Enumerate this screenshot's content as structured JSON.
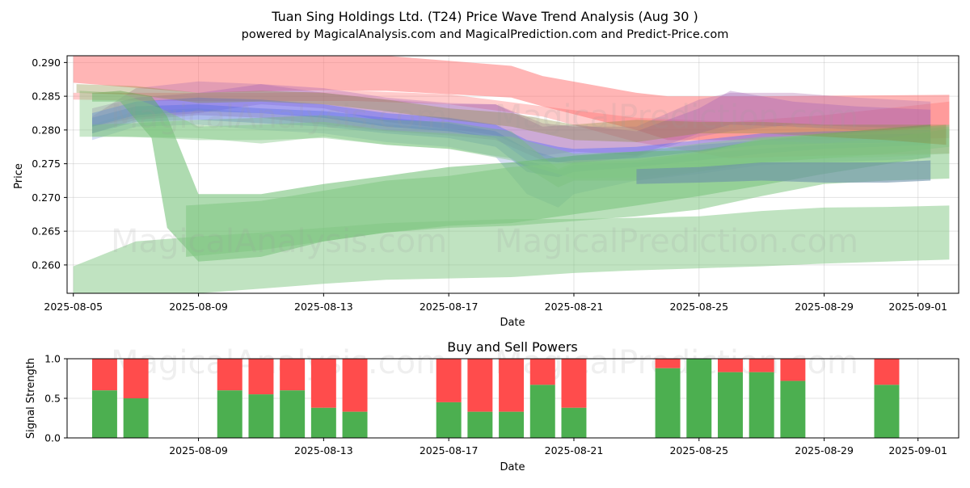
{
  "chart_data": [
    {
      "type": "area",
      "title": "Tuan Sing Holdings Ltd. (T24) Price Wave Trend Analysis (Aug 30 )",
      "subtitle": "powered by MagicalAnalysis.com and MagicalPrediction.com and Predict-Price.com",
      "xlabel": "Date",
      "ylabel": "Price",
      "x_start": "2025-08-05",
      "x_range_days": [
        -0.2,
        28.3
      ],
      "ylim": [
        0.2558,
        0.291
      ],
      "x_ticks": [
        "2025-08-05",
        "2025-08-09",
        "2025-08-13",
        "2025-08-17",
        "2025-08-21",
        "2025-08-25",
        "2025-08-29",
        "2025-09-01"
      ],
      "x_tick_days": [
        0,
        4,
        8,
        12,
        16,
        20,
        24,
        27
      ],
      "y_ticks": [
        "0.260",
        "0.265",
        "0.270",
        "0.275",
        "0.280",
        "0.285",
        "0.290"
      ],
      "y_tick_values": [
        0.26,
        0.265,
        0.27,
        0.275,
        0.28,
        0.285,
        0.29
      ],
      "grid": true,
      "watermarks": [
        "MagicalAnalysis.com",
        "MagicalPrediction.com"
      ],
      "bands": [
        {
          "name": "red-wave-1",
          "color": "#ff6b6b",
          "opacity": 0.5,
          "x": [
            0,
            4,
            7,
            10,
            14,
            15,
            18,
            19,
            22,
            28
          ],
          "upper": [
            0.2915,
            0.2915,
            0.2915,
            0.291,
            0.2895,
            0.288,
            0.2855,
            0.285,
            0.285,
            0.2852
          ],
          "lower": [
            0.287,
            0.2855,
            0.2858,
            0.2858,
            0.2848,
            0.2835,
            0.28,
            0.2785,
            0.2785,
            0.2788
          ]
        },
        {
          "name": "red-wave-2",
          "color": "#ff6b6b",
          "opacity": 0.35,
          "x": [
            0,
            3,
            6,
            9,
            12,
            15,
            18,
            21,
            24,
            28
          ],
          "upper": [
            0.2855,
            0.2855,
            0.2855,
            0.2858,
            0.2853,
            0.2835,
            0.2818,
            0.2812,
            0.2822,
            0.2842
          ],
          "lower": [
            0.2845,
            0.2843,
            0.2843,
            0.2843,
            0.2838,
            0.282,
            0.2782,
            0.2758,
            0.2762,
            0.2765
          ]
        },
        {
          "name": "purple-wave-1",
          "color": "#b070b0",
          "opacity": 0.35,
          "x": [
            0.6,
            2,
            4,
            6,
            8,
            10,
            12,
            13.5,
            15,
            16,
            18,
            20,
            21,
            23,
            25,
            27.4
          ],
          "upper": [
            0.282,
            0.2862,
            0.2872,
            0.2868,
            0.2855,
            0.2845,
            0.2838,
            0.2838,
            0.281,
            0.2805,
            0.2805,
            0.2845,
            0.2855,
            0.2855,
            0.2848,
            0.2842
          ],
          "lower": [
            0.2795,
            0.2815,
            0.2822,
            0.2818,
            0.2808,
            0.2798,
            0.2792,
            0.2785,
            0.2755,
            0.275,
            0.276,
            0.279,
            0.2798,
            0.2808,
            0.2805,
            0.2802
          ]
        },
        {
          "name": "purple-wave-2",
          "color": "#9b59b6",
          "opacity": 0.3,
          "x": [
            0.6,
            2,
            4,
            6,
            8,
            10,
            12,
            13.5,
            15,
            16,
            18,
            20,
            21,
            23,
            25,
            27.4
          ],
          "upper": [
            0.2832,
            0.2848,
            0.2855,
            0.2868,
            0.2862,
            0.2848,
            0.284,
            0.2838,
            0.2805,
            0.2808,
            0.2798,
            0.2832,
            0.2858,
            0.2842,
            0.2835,
            0.283
          ],
          "lower": [
            0.2805,
            0.2818,
            0.2825,
            0.2838,
            0.2832,
            0.2812,
            0.2802,
            0.2792,
            0.2762,
            0.2768,
            0.2762,
            0.2795,
            0.2808,
            0.2805,
            0.28,
            0.2798
          ]
        },
        {
          "name": "blue-wave-1",
          "color": "#5a6cff",
          "opacity": 0.45,
          "x": [
            0.6,
            2,
            4,
            6,
            8,
            10,
            12,
            13.5,
            14.5,
            15.5,
            16,
            18,
            20,
            22,
            24,
            27.4
          ],
          "upper": [
            0.2825,
            0.2842,
            0.2848,
            0.2845,
            0.2838,
            0.2825,
            0.2818,
            0.2808,
            0.2785,
            0.2775,
            0.2772,
            0.2775,
            0.2785,
            0.2795,
            0.2798,
            0.28
          ],
          "lower": [
            0.2805,
            0.2822,
            0.2828,
            0.2825,
            0.2818,
            0.2805,
            0.2798,
            0.2788,
            0.2755,
            0.2752,
            0.2755,
            0.2758,
            0.2768,
            0.2778,
            0.278,
            0.2782
          ]
        },
        {
          "name": "blue-wave-2",
          "color": "#4060e0",
          "opacity": 0.3,
          "x": [
            0.6,
            2,
            4,
            6,
            8,
            10,
            12,
            13.5,
            14.5,
            15.5,
            16,
            18,
            20,
            22,
            24,
            27.4
          ],
          "upper": [
            0.2818,
            0.2835,
            0.2838,
            0.2832,
            0.2828,
            0.2818,
            0.281,
            0.2798,
            0.2772,
            0.2758,
            0.2762,
            0.2768,
            0.2778,
            0.2785,
            0.2792,
            0.2795
          ],
          "lower": [
            0.2795,
            0.2812,
            0.2815,
            0.281,
            0.2805,
            0.2795,
            0.2788,
            0.2775,
            0.2738,
            0.273,
            0.2738,
            0.2745,
            0.2755,
            0.2765,
            0.2772,
            0.2778
          ]
        },
        {
          "name": "blue-wave-3",
          "color": "#6080d0",
          "opacity": 0.25,
          "x": [
            0.6,
            2,
            4,
            6,
            8,
            10,
            12,
            13.5,
            14.5,
            15.5,
            16,
            18,
            20,
            22,
            24,
            27.4
          ],
          "upper": [
            0.2808,
            0.2828,
            0.2832,
            0.2825,
            0.282,
            0.2808,
            0.2802,
            0.2788,
            0.2755,
            0.274,
            0.2748,
            0.2752,
            0.2765,
            0.2772,
            0.2778,
            0.2782
          ],
          "lower": [
            0.2785,
            0.2805,
            0.2808,
            0.28,
            0.2795,
            0.2782,
            0.2775,
            0.276,
            0.2705,
            0.2685,
            0.2705,
            0.2725,
            0.2735,
            0.2748,
            0.2752,
            0.2758
          ]
        },
        {
          "name": "green-wave-1",
          "color": "#4caf50",
          "opacity": 0.45,
          "x": [
            0.6,
            1.5,
            2.5,
            3,
            4,
            6,
            8,
            10,
            12,
            14,
            16,
            18,
            20,
            22,
            24,
            27.4
          ],
          "upper": [
            0.2855,
            0.2858,
            0.285,
            0.282,
            0.2705,
            0.2705,
            0.272,
            0.2732,
            0.2745,
            0.2752,
            0.2762,
            0.2768,
            0.277,
            0.2785,
            0.2795,
            0.2808
          ],
          "lower": [
            0.2842,
            0.2842,
            0.2788,
            0.2655,
            0.2605,
            0.2612,
            0.2635,
            0.2648,
            0.2658,
            0.2662,
            0.2675,
            0.2688,
            0.2702,
            0.2718,
            0.2735,
            0.276
          ]
        },
        {
          "name": "green-wave-2",
          "color": "#66bb6a",
          "opacity": 0.35,
          "x": [
            0.6,
            2,
            4,
            6,
            8,
            10,
            12,
            14,
            15.5,
            16,
            18,
            20,
            22,
            24,
            26,
            28
          ],
          "upper": [
            0.2808,
            0.281,
            0.2815,
            0.2818,
            0.2822,
            0.2815,
            0.2812,
            0.2798,
            0.2742,
            0.2752,
            0.2755,
            0.2768,
            0.2785,
            0.278,
            0.2788,
            0.2802
          ],
          "lower": [
            0.279,
            0.279,
            0.2788,
            0.278,
            0.279,
            0.2778,
            0.2772,
            0.2758,
            0.2715,
            0.2725,
            0.2725,
            0.2738,
            0.2752,
            0.2758,
            0.2765,
            0.2775
          ]
        },
        {
          "name": "green-wave-3",
          "color": "#81c784",
          "opacity": 0.5,
          "x": [
            0,
            2,
            4,
            6,
            8,
            10,
            12,
            14,
            16,
            18,
            20,
            22,
            24,
            26,
            28
          ],
          "upper": [
            0.2598,
            0.2635,
            0.2642,
            0.2648,
            0.2655,
            0.2662,
            0.2665,
            0.2668,
            0.2668,
            0.267,
            0.2672,
            0.268,
            0.2685,
            0.2686,
            0.2688
          ],
          "lower": [
            0.2558,
            0.2555,
            0.2558,
            0.2565,
            0.2572,
            0.2578,
            0.258,
            0.2582,
            0.2588,
            0.2592,
            0.2595,
            0.2598,
            0.2602,
            0.2605,
            0.2608
          ]
        },
        {
          "name": "green-wave-4",
          "color": "#81c784",
          "opacity": 0.42,
          "x": [
            0.2,
            1.5,
            2.8,
            4,
            6,
            8,
            10,
            12,
            14,
            16,
            18,
            20,
            22,
            24,
            26,
            28
          ],
          "upper": [
            0.2858,
            0.2855,
            0.2832,
            0.2805,
            0.2808,
            0.2812,
            0.28,
            0.2795,
            0.279,
            0.2765,
            0.2768,
            0.278,
            0.279,
            0.2792,
            0.2798,
            0.2805
          ],
          "lower": [
            0.279,
            0.279,
            0.2788,
            0.2785,
            0.2785,
            0.2788,
            0.2778,
            0.2772,
            0.2755,
            0.2728,
            0.273,
            0.274,
            0.2752,
            0.2758,
            0.276,
            0.2765
          ]
        },
        {
          "name": "green-wave-5",
          "color": "#81c784",
          "opacity": 0.55,
          "x": [
            3.6,
            6,
            8,
            10,
            12,
            14,
            16,
            18,
            20,
            22,
            24,
            26,
            28
          ],
          "upper": [
            0.2688,
            0.2695,
            0.271,
            0.2725,
            0.2732,
            0.2745,
            0.2752,
            0.2758,
            0.2765,
            0.2788,
            0.2795,
            0.28,
            0.2808
          ],
          "lower": [
            0.2612,
            0.2622,
            0.2635,
            0.2648,
            0.2655,
            0.2658,
            0.2665,
            0.2672,
            0.2682,
            0.2702,
            0.272,
            0.2725,
            0.2728
          ]
        },
        {
          "name": "olive-wave",
          "color": "#8a8a3a",
          "opacity": 0.35,
          "x": [
            0.1,
            2,
            4,
            6,
            8,
            10,
            12,
            14,
            16,
            18,
            20,
            22,
            24,
            26,
            27.9
          ],
          "upper": [
            0.2868,
            0.2865,
            0.2855,
            0.2858,
            0.2855,
            0.2845,
            0.2832,
            0.2825,
            0.2808,
            0.2815,
            0.2812,
            0.2812,
            0.2808,
            0.2808,
            0.2808
          ],
          "lower": [
            0.2855,
            0.2852,
            0.284,
            0.2842,
            0.2838,
            0.2828,
            0.2815,
            0.2805,
            0.2785,
            0.2782,
            0.2795,
            0.2795,
            0.279,
            0.2785,
            0.2778
          ]
        },
        {
          "name": "teal-wave",
          "color": "#6a8fa8",
          "opacity": 0.6,
          "x": [
            18,
            20,
            22,
            24,
            26,
            27.4
          ],
          "upper": [
            0.2742,
            0.2745,
            0.2752,
            0.2752,
            0.2752,
            0.2755
          ],
          "lower": [
            0.272,
            0.2722,
            0.2725,
            0.2722,
            0.2722,
            0.2725
          ]
        }
      ]
    },
    {
      "type": "bar",
      "title": "Buy and Sell Powers",
      "xlabel": "Date",
      "ylabel": "Signal Strength",
      "ylim": [
        0,
        1.0
      ],
      "y_ticks": [
        "0.0",
        "0.5",
        "1.0"
      ],
      "y_tick_values": [
        0,
        0.5,
        1.0
      ],
      "x_range_days": [
        -0.2,
        28.3
      ],
      "x_ticks": [
        "2025-08-09",
        "2025-08-13",
        "2025-08-17",
        "2025-08-21",
        "2025-08-25",
        "2025-08-29",
        "2025-09-01"
      ],
      "x_tick_days": [
        4,
        8,
        12,
        16,
        20,
        24,
        27
      ],
      "series": [
        {
          "name": "Buy",
          "color": "#4caf50"
        },
        {
          "name": "Sell",
          "color": "#ff4c4c"
        }
      ],
      "days": [
        1,
        2,
        5,
        6,
        7,
        8,
        9,
        12,
        13,
        14,
        15,
        16,
        19,
        20,
        21,
        22,
        23,
        26
      ],
      "buy": [
        0.6,
        0.5,
        0.6,
        0.55,
        0.6,
        0.38,
        0.33,
        0.45,
        0.33,
        0.33,
        0.67,
        0.38,
        0.88,
        1.0,
        0.83,
        0.83,
        0.72,
        0.67
      ]
    }
  ]
}
